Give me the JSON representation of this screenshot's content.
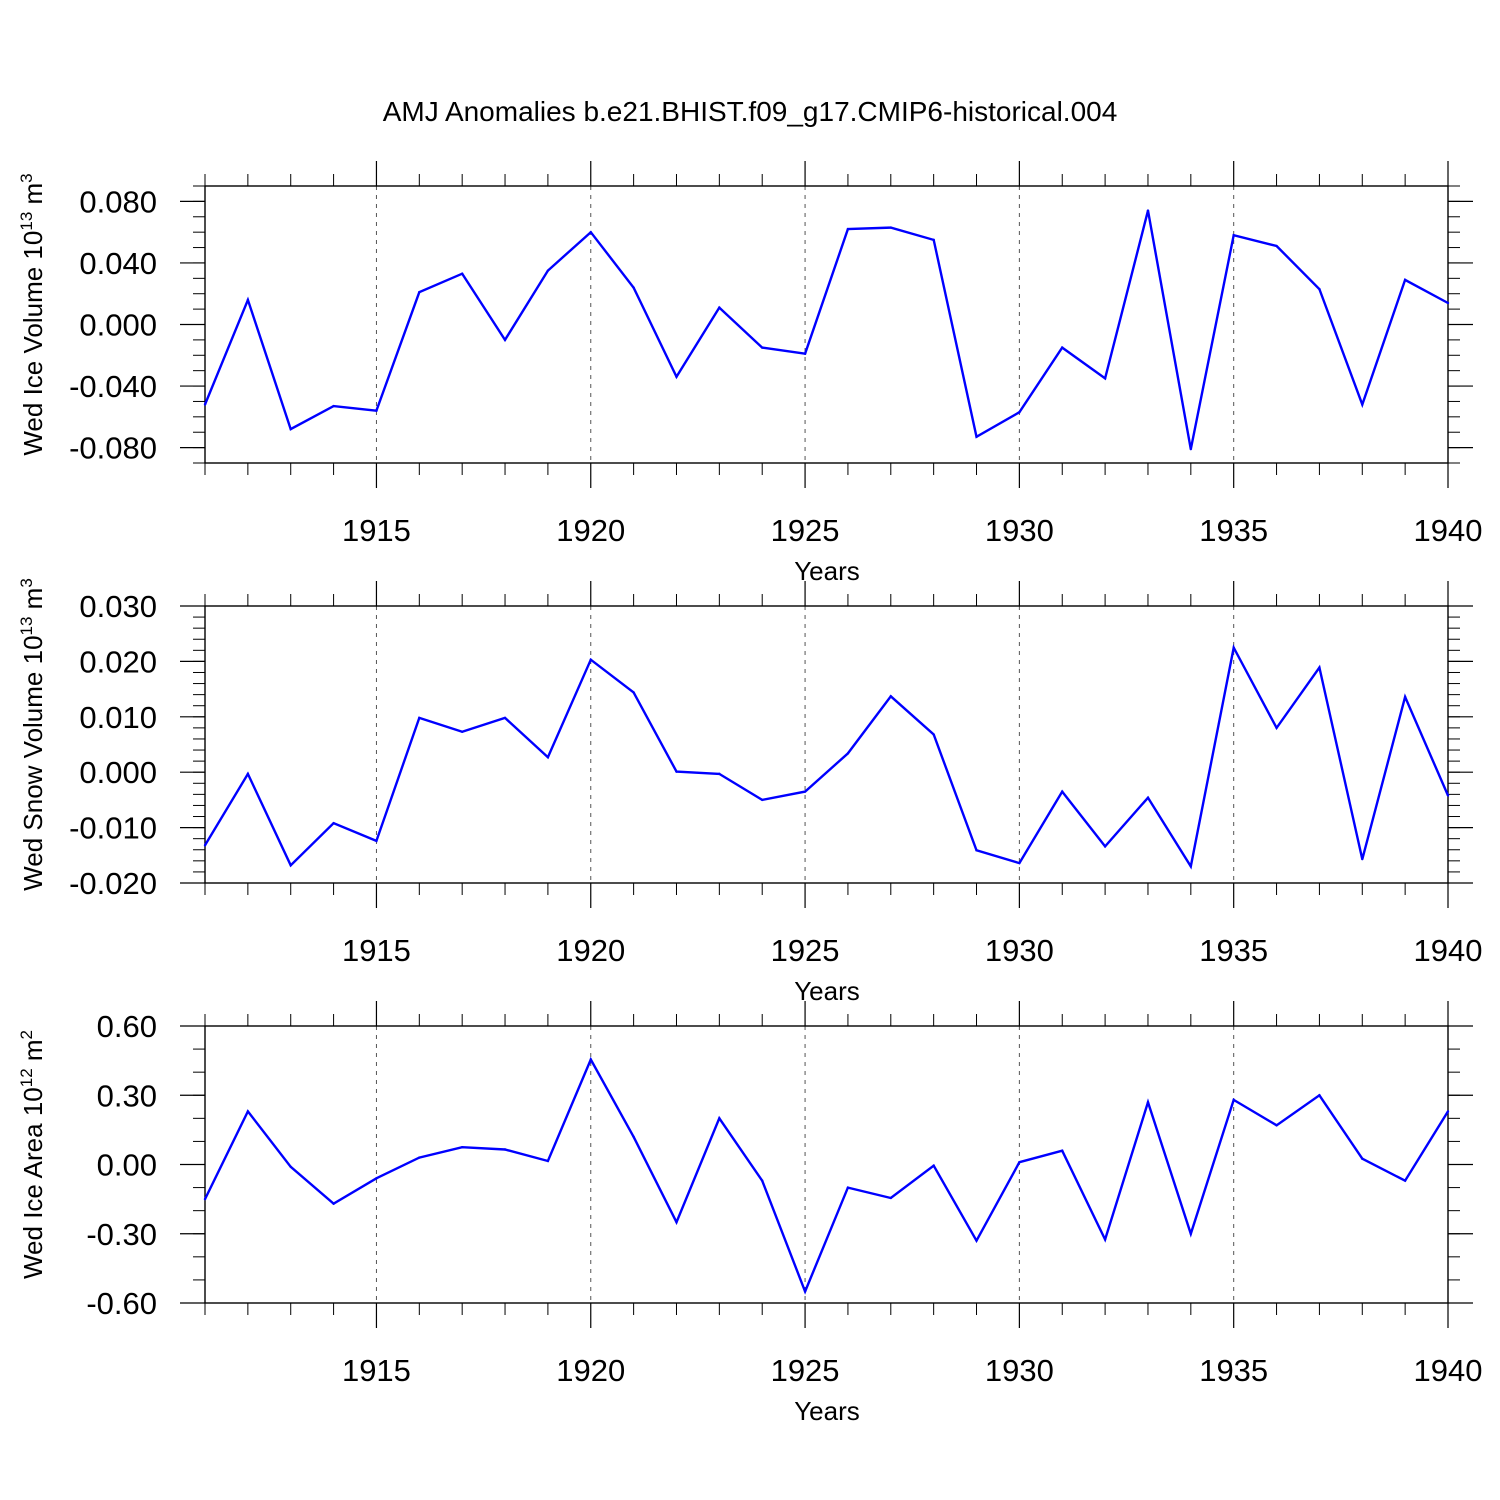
{
  "title": "AMJ Anomalies b.e21.BHIST.f09_g17.CMIP6-historical.004",
  "line_color": "#0000ff",
  "chart_data": [
    {
      "type": "line",
      "title": "AMJ Anomalies b.e21.BHIST.f09_g17.CMIP6-historical.004",
      "ylabel": "Wed Ice Volume 10^13 m^3",
      "ylabel_main": "Wed Ice Volume 10",
      "ylabel_exp": "13",
      "ylabel_unit": " m",
      "ylabel_unit_exp": "3",
      "xlabel": "Years",
      "xlim": [
        1911,
        1940
      ],
      "ylim": [
        -0.09,
        0.09
      ],
      "yticks": [
        -0.08,
        -0.04,
        0.0,
        0.04,
        0.08
      ],
      "ytick_labels": [
        "-0.080",
        "-0.040",
        "0.000",
        "0.040",
        "0.080"
      ],
      "yminor_step": 0.01,
      "xticks": [
        1915,
        1920,
        1925,
        1930,
        1935,
        1940
      ],
      "xtick_labels": [
        "1915",
        "1920",
        "1925",
        "1930",
        "1935",
        "1940"
      ],
      "grid": "vertical dashed at major x ticks",
      "x": [
        1911,
        1912,
        1913,
        1914,
        1915,
        1916,
        1917,
        1918,
        1919,
        1920,
        1921,
        1922,
        1923,
        1924,
        1925,
        1926,
        1927,
        1928,
        1929,
        1930,
        1931,
        1932,
        1933,
        1934,
        1935,
        1936,
        1937,
        1938,
        1939,
        1940
      ],
      "values": [
        -0.052,
        0.016,
        -0.068,
        -0.053,
        -0.056,
        0.021,
        0.033,
        -0.01,
        0.035,
        0.06,
        0.024,
        -0.034,
        0.011,
        -0.015,
        -0.019,
        0.062,
        0.063,
        0.055,
        -0.073,
        -0.057,
        -0.015,
        -0.035,
        0.074,
        -0.081,
        0.058,
        0.051,
        0.023,
        -0.052,
        0.029,
        0.014
      ]
    },
    {
      "type": "line",
      "ylabel": "Wed Snow Volume 10^13 m^3",
      "ylabel_main": "Wed Snow Volume 10",
      "ylabel_exp": "13",
      "ylabel_unit": " m",
      "ylabel_unit_exp": "3",
      "xlabel": "Years",
      "xlim": [
        1911,
        1940
      ],
      "ylim": [
        -0.02,
        0.03
      ],
      "yticks": [
        -0.02,
        -0.01,
        0.0,
        0.01,
        0.02,
        0.03
      ],
      "ytick_labels": [
        "-0.020",
        "-0.010",
        "0.000",
        "0.010",
        "0.020",
        "0.030"
      ],
      "yminor_step": 0.002,
      "xticks": [
        1915,
        1920,
        1925,
        1930,
        1935,
        1940
      ],
      "xtick_labels": [
        "1915",
        "1920",
        "1925",
        "1930",
        "1935",
        "1940"
      ],
      "grid": "vertical dashed at major x ticks",
      "x": [
        1911,
        1912,
        1913,
        1914,
        1915,
        1916,
        1917,
        1918,
        1919,
        1920,
        1921,
        1922,
        1923,
        1924,
        1925,
        1926,
        1927,
        1928,
        1929,
        1930,
        1931,
        1932,
        1933,
        1934,
        1935,
        1936,
        1937,
        1938,
        1939,
        1940
      ],
      "values": [
        -0.0132,
        -0.0003,
        -0.0168,
        -0.0092,
        -0.0124,
        0.0098,
        0.0073,
        0.0098,
        0.0027,
        0.0203,
        0.0144,
        0.0001,
        -0.0003,
        -0.005,
        -0.0035,
        0.0034,
        0.0137,
        0.0068,
        -0.0141,
        -0.0164,
        -0.0035,
        -0.0134,
        -0.0046,
        -0.017,
        0.0225,
        0.008,
        0.0189,
        -0.0157,
        0.0136,
        -0.0042
      ]
    },
    {
      "type": "line",
      "ylabel": "Wed Ice Area 10^12 m^2",
      "ylabel_main": "Wed Ice Area 10",
      "ylabel_exp": "12",
      "ylabel_unit": " m",
      "ylabel_unit_exp": "2",
      "xlabel": "Years",
      "xlim": [
        1911,
        1940
      ],
      "ylim": [
        -0.6,
        0.6
      ],
      "yticks": [
        -0.6,
        -0.3,
        0.0,
        0.3,
        0.6
      ],
      "ytick_labels": [
        "-0.60",
        "-0.30",
        "0.00",
        "0.30",
        "0.60"
      ],
      "yminor_step": 0.1,
      "xticks": [
        1915,
        1920,
        1925,
        1930,
        1935,
        1940
      ],
      "xtick_labels": [
        "1915",
        "1920",
        "1925",
        "1930",
        "1935",
        "1940"
      ],
      "grid": "vertical dashed at major x ticks",
      "x": [
        1911,
        1912,
        1913,
        1914,
        1915,
        1916,
        1917,
        1918,
        1919,
        1920,
        1921,
        1922,
        1923,
        1924,
        1925,
        1926,
        1927,
        1928,
        1929,
        1930,
        1931,
        1932,
        1933,
        1934,
        1935,
        1936,
        1937,
        1938,
        1939,
        1940
      ],
      "values": [
        -0.15,
        0.23,
        -0.01,
        -0.17,
        -0.06,
        0.03,
        0.075,
        0.065,
        0.015,
        0.455,
        0.12,
        -0.25,
        0.2,
        -0.07,
        -0.55,
        -0.1,
        -0.145,
        -0.005,
        -0.33,
        0.01,
        0.06,
        -0.325,
        0.27,
        -0.3,
        0.28,
        0.17,
        0.3,
        0.025,
        -0.07,
        0.23
      ]
    }
  ]
}
